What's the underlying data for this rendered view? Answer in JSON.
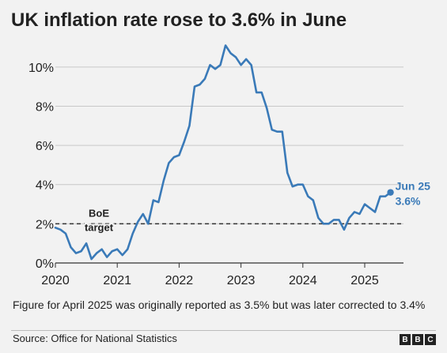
{
  "title": "UK inflation rate rose to 3.6% in June",
  "footnote": "Figure for April 2025 was originally reported as 3.5% but was later corrected to 3.4%",
  "source": "Source: Office for National Statistics",
  "logo": [
    "B",
    "B",
    "C"
  ],
  "colors": {
    "line": "#3a7ab8",
    "grid": "#c8c8c8",
    "target": "#333333",
    "background": "#f2f2f2"
  },
  "chart_data": {
    "type": "line",
    "title": "UK inflation rate rose to 3.6% in June",
    "xlabel": "",
    "ylabel": "",
    "ylim": [
      0,
      11
    ],
    "yticks": [
      0,
      2,
      4,
      6,
      8,
      10
    ],
    "ytick_labels": [
      "0%",
      "2%",
      "4%",
      "6%",
      "8%",
      "10%"
    ],
    "xticks": [
      2020,
      2021,
      2022,
      2023,
      2024,
      2025
    ],
    "xtick_labels": [
      "2020",
      "2021",
      "2022",
      "2023",
      "2024",
      "2025"
    ],
    "grid": "horizontal",
    "x_start": "2020-01",
    "x_end": "2025-06",
    "values": [
      1.8,
      1.7,
      1.5,
      0.8,
      0.5,
      0.6,
      1.0,
      0.2,
      0.5,
      0.7,
      0.3,
      0.6,
      0.7,
      0.4,
      0.7,
      1.5,
      2.1,
      2.5,
      2.0,
      3.2,
      3.1,
      4.2,
      5.1,
      5.4,
      5.5,
      6.2,
      7.0,
      9.0,
      9.1,
      9.4,
      10.1,
      9.9,
      10.1,
      11.1,
      10.7,
      10.5,
      10.1,
      10.4,
      10.1,
      8.7,
      8.7,
      7.9,
      6.8,
      6.7,
      6.7,
      4.6,
      3.9,
      4.0,
      4.0,
      3.4,
      3.2,
      2.3,
      2.0,
      2.0,
      2.2,
      2.2,
      1.7,
      2.3,
      2.6,
      2.5,
      3.0,
      2.8,
      2.6,
      3.4,
      3.4,
      3.6
    ],
    "reference_line": {
      "value": 2,
      "label_line1": "BoE",
      "label_line2": "target"
    },
    "end_label": {
      "line1": "Jun 25",
      "line2": "3.6%"
    }
  }
}
